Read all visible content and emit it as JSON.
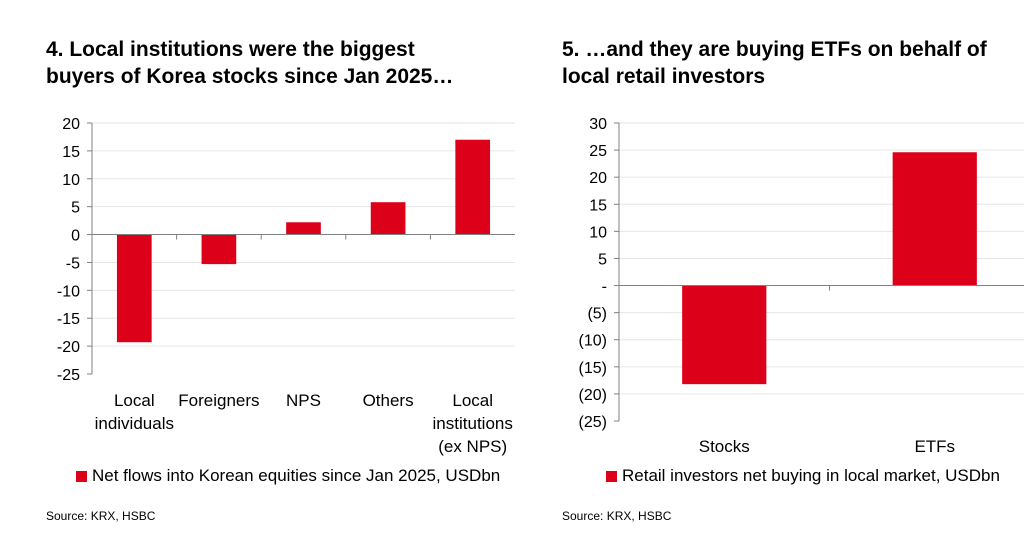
{
  "colors": {
    "bar": "#dc0018",
    "axis": "#808080",
    "grid": "#e6e6e6"
  },
  "chart_data": [
    {
      "type": "bar",
      "title": "4. Local institutions were the biggest buyers of Korea stocks since Jan 2025…",
      "title_lines": [
        "4. Local institutions were the biggest",
        "buyers of Korea stocks since Jan 2025…"
      ],
      "categories": [
        "Local individuals",
        "Foreigners",
        "NPS",
        "Others",
        "Local institutions (ex NPS)"
      ],
      "category_lines": [
        [
          "Local",
          "individuals"
        ],
        [
          "Foreigners"
        ],
        [
          "NPS"
        ],
        [
          "Others"
        ],
        [
          "Local",
          "institutions",
          "(ex NPS)"
        ]
      ],
      "values": [
        -19.3,
        -5.3,
        2.2,
        5.8,
        17.0
      ],
      "ylim": [
        -25,
        20
      ],
      "yticks": [
        20,
        15,
        10,
        5,
        0,
        -5,
        -10,
        -15,
        -20,
        -25
      ],
      "ytick_labels": [
        "20",
        "15",
        "10",
        "5",
        "0",
        "-5",
        "-10",
        "-15",
        "-20",
        "-25"
      ],
      "legend": "Net flows into Korean equities since Jan 2025, USDbn",
      "source": "Source: KRX, HSBC",
      "xlabel": "",
      "ylabel": "",
      "grid": true
    },
    {
      "type": "bar",
      "title": "5. …and they are buying ETFs on behalf of local retail investors",
      "title_lines": [
        "5. …and they are buying ETFs on behalf of",
        "local retail investors"
      ],
      "categories": [
        "Stocks",
        "ETFs"
      ],
      "category_lines": [
        [
          "Stocks"
        ],
        [
          "ETFs"
        ]
      ],
      "values": [
        -18.2,
        24.6
      ],
      "ylim": [
        -25,
        30
      ],
      "yticks": [
        30,
        25,
        20,
        15,
        10,
        5,
        0,
        -5,
        -10,
        -15,
        -20,
        -25
      ],
      "ytick_labels": [
        "30",
        "25",
        "20",
        "15",
        "10",
        "5",
        "-",
        "(5)",
        "(10)",
        "(15)",
        "(20)",
        "(25)"
      ],
      "legend": "Retail investors net buying in local market, USDbn",
      "source": "Source: KRX, HSBC",
      "xlabel": "",
      "ylabel": "",
      "grid": true
    }
  ]
}
